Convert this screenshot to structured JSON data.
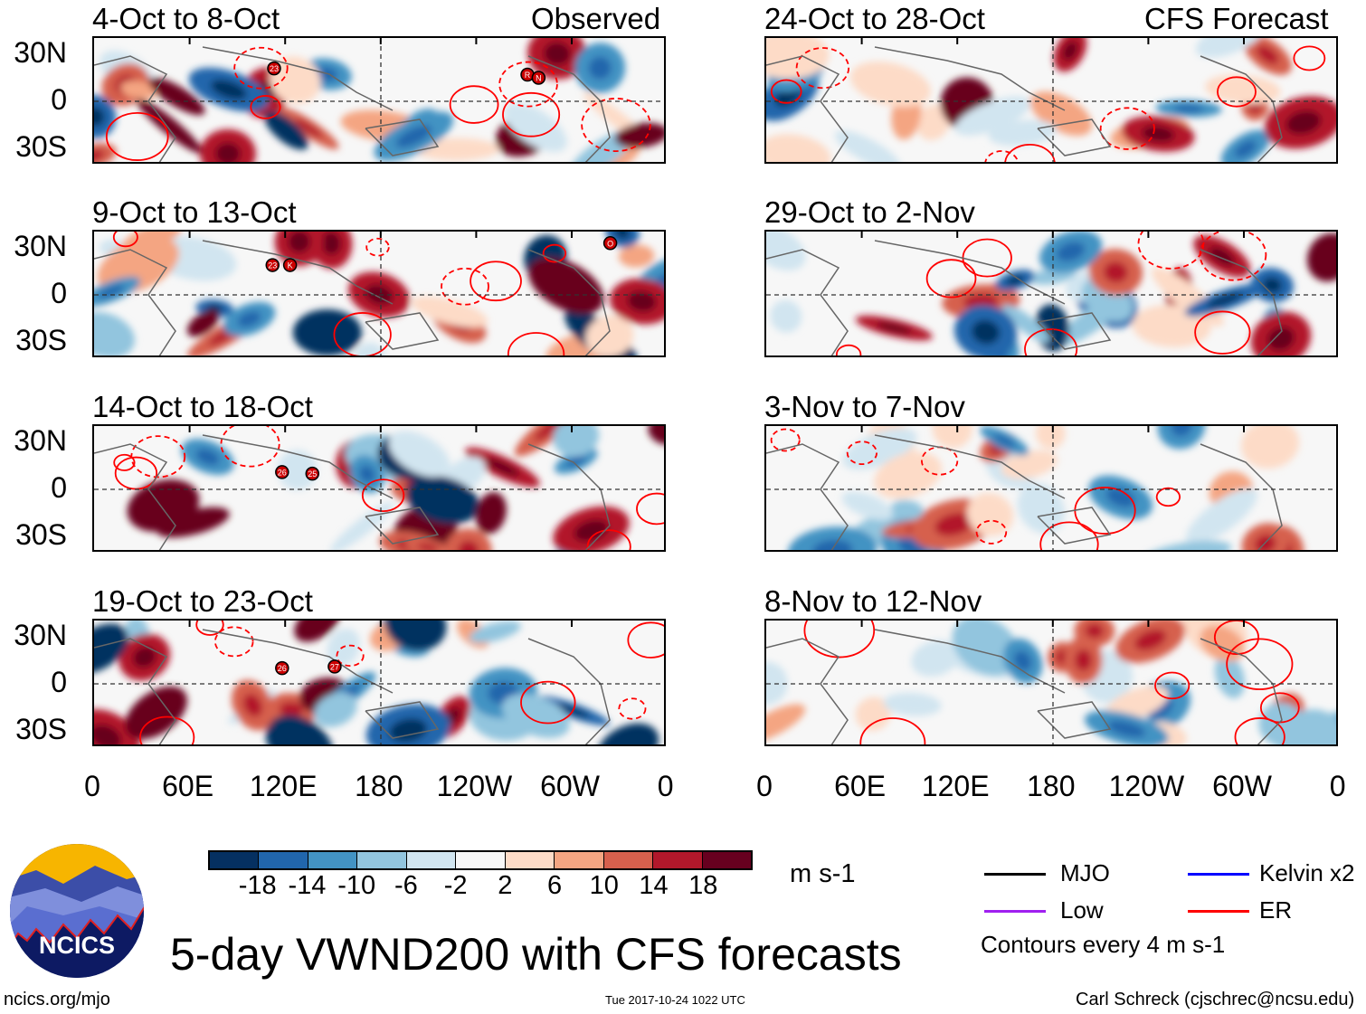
{
  "header": {
    "observed_label": "Observed",
    "forecast_label": "CFS Forecast"
  },
  "panels": [
    {
      "title": "4-Oct to 8-Oct",
      "column": "observed",
      "storms": [
        {
          "label": "23",
          "lon": 113,
          "lat": 21
        },
        {
          "label": "R",
          "lon": -88,
          "lat": 17
        },
        {
          "label": "N",
          "lon": -81,
          "lat": 15
        }
      ]
    },
    {
      "title": "9-Oct to 13-Oct",
      "column": "observed",
      "storms": [
        {
          "label": "23",
          "lon": 112,
          "lat": 19
        },
        {
          "label": "K",
          "lon": 123,
          "lat": 19
        },
        {
          "label": "O",
          "lon": -36,
          "lat": 33
        }
      ]
    },
    {
      "title": "14-Oct to 18-Oct",
      "column": "observed",
      "storms": [
        {
          "label": "26",
          "lon": 118,
          "lat": 11
        },
        {
          "label": "25",
          "lon": 137,
          "lat": 10
        }
      ]
    },
    {
      "title": "19-Oct to 23-Oct",
      "column": "observed",
      "storms": [
        {
          "label": "26",
          "lon": 118,
          "lat": 10
        },
        {
          "label": "27",
          "lon": 151,
          "lat": 11
        }
      ]
    },
    {
      "title": "24-Oct to 28-Oct",
      "column": "forecast",
      "storms": []
    },
    {
      "title": "29-Oct to 2-Nov",
      "column": "forecast",
      "storms": []
    },
    {
      "title": "3-Nov to 7-Nov",
      "column": "forecast",
      "storms": []
    },
    {
      "title": "8-Nov to 12-Nov",
      "column": "forecast",
      "storms": []
    }
  ],
  "y_ticks": [
    "30N",
    "0",
    "30S"
  ],
  "x_ticks": [
    "0",
    "60E",
    "120E",
    "180",
    "120W",
    "60W",
    "0"
  ],
  "colorbar": {
    "labels": [
      "-18",
      "-14",
      "-10",
      "-6",
      "-2",
      "2",
      "6",
      "10",
      "14",
      "18"
    ],
    "colors": [
      "#053061",
      "#2166ac",
      "#4393c3",
      "#92c5de",
      "#d1e5f0",
      "#f7f7f7",
      "#fddbc7",
      "#f4a582",
      "#d6604d",
      "#b2182b",
      "#67001f"
    ],
    "units": "m s-1"
  },
  "legend": {
    "items": [
      {
        "label": "MJO",
        "color": "#000000"
      },
      {
        "label": "Kelvin x2",
        "color": "#0000ff"
      },
      {
        "label": "Low",
        "color": "#a020f0"
      },
      {
        "label": "ER",
        "color": "#ff0000"
      }
    ],
    "contour_note": "Contours every 4 m s-1"
  },
  "logo": {
    "text": "NCICS"
  },
  "title": "5-day VWND200 with CFS forecasts",
  "footer": {
    "url": "ncics.org/mjo",
    "timestamp": "Tue 2017-10-24 1022 UTC",
    "author": "Carl Schreck (cjschrec@ncsu.edu)"
  }
}
